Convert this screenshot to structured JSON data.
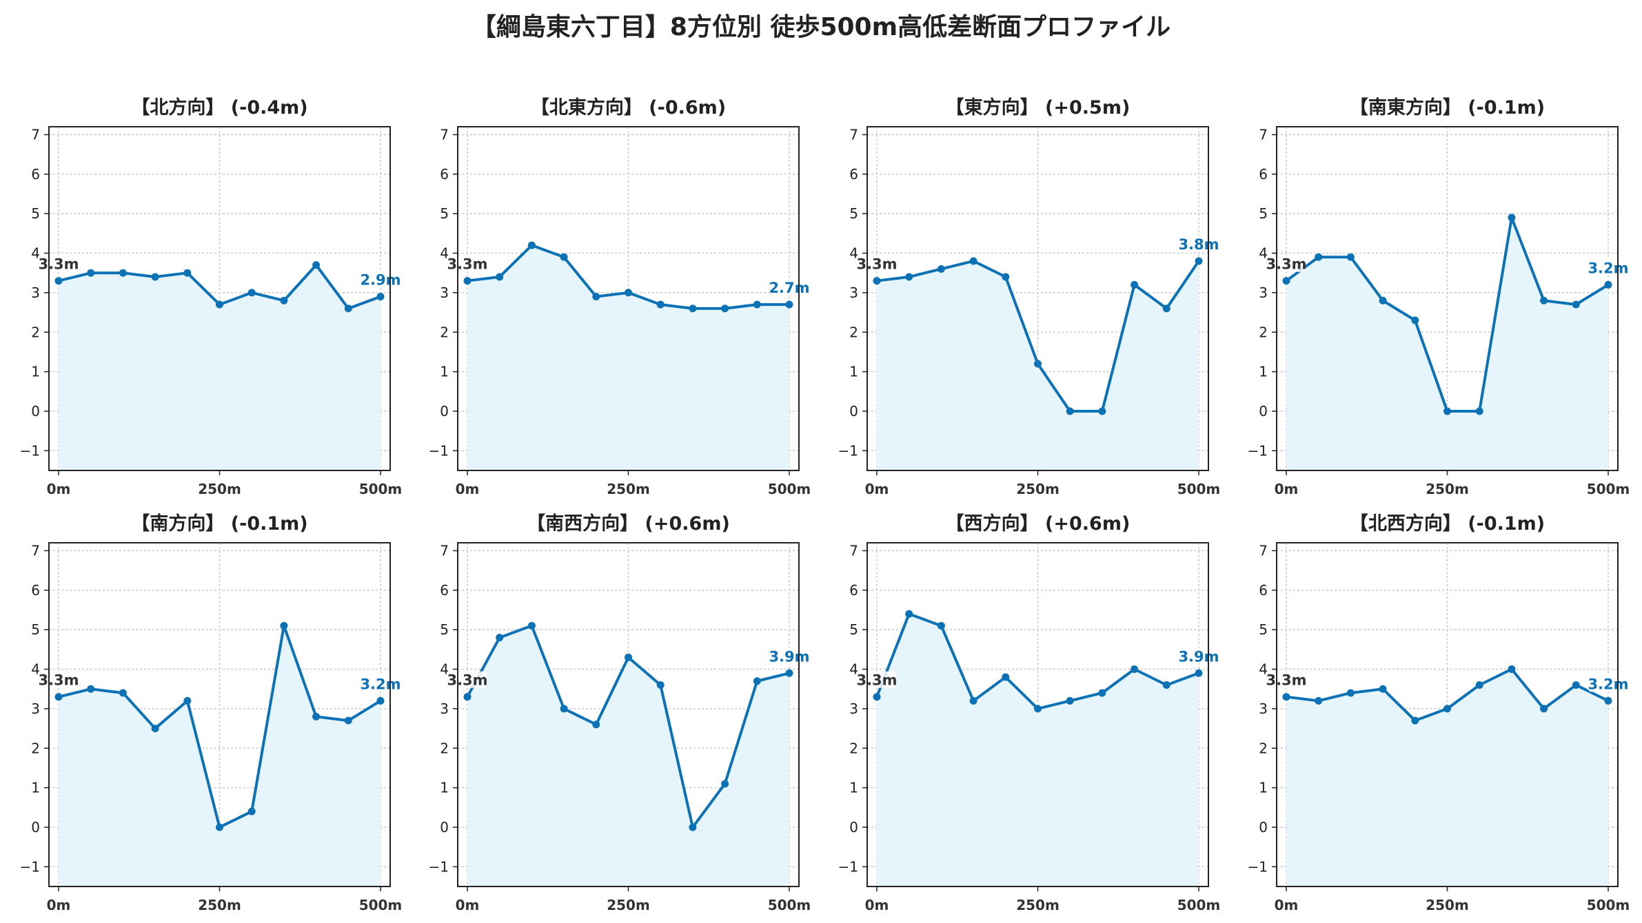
{
  "title": "【綱島東六丁目】8方位別 徒歩500m高低差断面プロファイル",
  "colors": {
    "line": "#0d72b5",
    "fill": "#e6f5fb",
    "grid": "#c8c8c8",
    "end_label": "#0d72b5",
    "start_label": "#333333"
  },
  "chart_data": [
    {
      "type": "area",
      "title": "【北方向】 (-0.4m)",
      "x": [
        0,
        50,
        100,
        150,
        200,
        250,
        300,
        350,
        400,
        450,
        500
      ],
      "values": [
        3.3,
        3.5,
        3.5,
        3.4,
        3.5,
        2.7,
        3.0,
        2.8,
        3.7,
        2.6,
        2.9
      ],
      "start_label": "3.3m",
      "end_label": "2.9m",
      "xticks": [
        "0m",
        "250m",
        "500m"
      ],
      "yticks": [
        "−1",
        "0",
        "1",
        "2",
        "3",
        "4",
        "5",
        "6",
        "7"
      ],
      "xlim": [
        -15,
        515
      ],
      "ylim": [
        -1.5,
        7.2
      ],
      "grid": true
    },
    {
      "type": "area",
      "title": "【北東方向】 (-0.6m)",
      "x": [
        0,
        50,
        100,
        150,
        200,
        250,
        300,
        350,
        400,
        450,
        500
      ],
      "values": [
        3.3,
        3.4,
        4.2,
        3.9,
        2.9,
        3.0,
        2.7,
        2.6,
        2.6,
        2.7,
        2.7
      ],
      "start_label": "3.3m",
      "end_label": "2.7m",
      "xticks": [
        "0m",
        "250m",
        "500m"
      ],
      "yticks": [
        "−1",
        "0",
        "1",
        "2",
        "3",
        "4",
        "5",
        "6",
        "7"
      ],
      "xlim": [
        -15,
        515
      ],
      "ylim": [
        -1.5,
        7.2
      ],
      "grid": true
    },
    {
      "type": "area",
      "title": "【東方向】 (+0.5m)",
      "x": [
        0,
        50,
        100,
        150,
        200,
        250,
        300,
        350,
        400,
        450,
        500
      ],
      "values": [
        3.3,
        3.4,
        3.6,
        3.8,
        3.4,
        1.2,
        0.0,
        0.0,
        3.2,
        2.6,
        3.8
      ],
      "start_label": "3.3m",
      "end_label": "3.8m",
      "xticks": [
        "0m",
        "250m",
        "500m"
      ],
      "yticks": [
        "−1",
        "0",
        "1",
        "2",
        "3",
        "4",
        "5",
        "6",
        "7"
      ],
      "xlim": [
        -15,
        515
      ],
      "ylim": [
        -1.5,
        7.2
      ],
      "grid": true
    },
    {
      "type": "area",
      "title": "【南東方向】 (-0.1m)",
      "x": [
        0,
        50,
        100,
        150,
        200,
        250,
        300,
        350,
        400,
        450,
        500
      ],
      "values": [
        3.3,
        3.9,
        3.9,
        2.8,
        2.3,
        0.0,
        0.0,
        4.9,
        2.8,
        2.7,
        3.2
      ],
      "start_label": "3.3m",
      "end_label": "3.2m",
      "xticks": [
        "0m",
        "250m",
        "500m"
      ],
      "yticks": [
        "−1",
        "0",
        "1",
        "2",
        "3",
        "4",
        "5",
        "6",
        "7"
      ],
      "xlim": [
        -15,
        515
      ],
      "ylim": [
        -1.5,
        7.2
      ],
      "grid": true
    },
    {
      "type": "area",
      "title": "【南方向】 (-0.1m)",
      "x": [
        0,
        50,
        100,
        150,
        200,
        250,
        300,
        350,
        400,
        450,
        500
      ],
      "values": [
        3.3,
        3.5,
        3.4,
        2.5,
        3.2,
        0.0,
        0.4,
        5.1,
        2.8,
        2.7,
        3.2
      ],
      "start_label": "3.3m",
      "end_label": "3.2m",
      "xticks": [
        "0m",
        "250m",
        "500m"
      ],
      "yticks": [
        "−1",
        "0",
        "1",
        "2",
        "3",
        "4",
        "5",
        "6",
        "7"
      ],
      "xlim": [
        -15,
        515
      ],
      "ylim": [
        -1.5,
        7.2
      ],
      "grid": true
    },
    {
      "type": "area",
      "title": "【南西方向】 (+0.6m)",
      "x": [
        0,
        50,
        100,
        150,
        200,
        250,
        300,
        350,
        400,
        450,
        500
      ],
      "values": [
        3.3,
        4.8,
        5.1,
        3.0,
        2.6,
        4.3,
        3.6,
        0.0,
        1.1,
        3.7,
        3.9
      ],
      "start_label": "3.3m",
      "end_label": "3.9m",
      "xticks": [
        "0m",
        "250m",
        "500m"
      ],
      "yticks": [
        "−1",
        "0",
        "1",
        "2",
        "3",
        "4",
        "5",
        "6",
        "7"
      ],
      "xlim": [
        -15,
        515
      ],
      "ylim": [
        -1.5,
        7.2
      ],
      "grid": true
    },
    {
      "type": "area",
      "title": "【西方向】 (+0.6m)",
      "x": [
        0,
        50,
        100,
        150,
        200,
        250,
        300,
        350,
        400,
        450,
        500
      ],
      "values": [
        3.3,
        5.4,
        5.1,
        3.2,
        3.8,
        3.0,
        3.2,
        3.4,
        4.0,
        3.6,
        3.9
      ],
      "start_label": "3.3m",
      "end_label": "3.9m",
      "xticks": [
        "0m",
        "250m",
        "500m"
      ],
      "yticks": [
        "−1",
        "0",
        "1",
        "2",
        "3",
        "4",
        "5",
        "6",
        "7"
      ],
      "xlim": [
        -15,
        515
      ],
      "ylim": [
        -1.5,
        7.2
      ],
      "grid": true
    },
    {
      "type": "area",
      "title": "【北西方向】 (-0.1m)",
      "x": [
        0,
        50,
        100,
        150,
        200,
        250,
        300,
        350,
        400,
        450,
        500
      ],
      "values": [
        3.3,
        3.2,
        3.4,
        3.5,
        2.7,
        3.0,
        3.6,
        4.0,
        3.0,
        3.6,
        3.2
      ],
      "start_label": "3.3m",
      "end_label": "3.2m",
      "xticks": [
        "0m",
        "250m",
        "500m"
      ],
      "yticks": [
        "−1",
        "0",
        "1",
        "2",
        "3",
        "4",
        "5",
        "6",
        "7"
      ],
      "xlim": [
        -15,
        515
      ],
      "ylim": [
        -1.5,
        7.2
      ],
      "grid": true
    }
  ]
}
